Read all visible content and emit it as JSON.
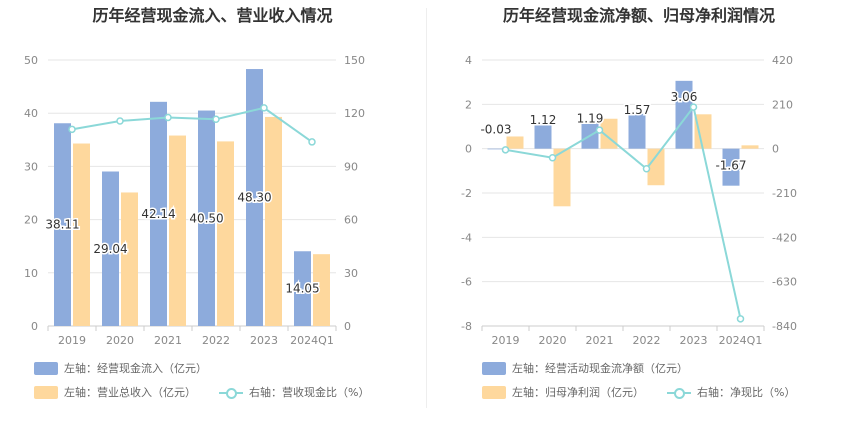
{
  "colors": {
    "bar_primary": "#8dabdc",
    "bar_secondary": "#fed89d",
    "line": "#8bd8d8"
  },
  "chart_data": [
    {
      "type": "bar",
      "title": "历年经营现金流入、营业收入情况",
      "categories": [
        "2019",
        "2020",
        "2021",
        "2022",
        "2023",
        "2024Q1"
      ],
      "series": [
        {
          "name": "左轴：经营现金流入（亿元）",
          "axis": "left",
          "values": [
            38.11,
            29.04,
            42.14,
            40.5,
            48.3,
            14.05
          ],
          "labels": [
            "38.11",
            "29.04",
            "42.14",
            "40.50",
            "48.30",
            "14.05"
          ]
        },
        {
          "name": "左轴：营业总收入（亿元）",
          "axis": "left",
          "values": [
            34.3,
            25.1,
            35.8,
            34.7,
            39.3,
            13.5
          ]
        },
        {
          "name": "右轴：营收现金比（%）",
          "axis": "right",
          "type": "line",
          "values": [
            110.9,
            115.6,
            117.6,
            116.6,
            123.0,
            103.8
          ]
        }
      ],
      "left_axis": {
        "min": 0,
        "max": 50,
        "ticks": [
          "0",
          "10",
          "20",
          "30",
          "40",
          "50"
        ]
      },
      "right_axis": {
        "min": 0,
        "max": 150,
        "ticks": [
          "0",
          "30",
          "60",
          "90",
          "120",
          "150"
        ]
      },
      "grid": true,
      "legend_position": "bottom"
    },
    {
      "type": "bar",
      "title": "历年经营现金流净额、归母净利润情况",
      "categories": [
        "2019",
        "2020",
        "2021",
        "2022",
        "2023",
        "2024Q1"
      ],
      "series": [
        {
          "name": "左轴：经营活动现金流净额（亿元）",
          "axis": "left",
          "values": [
            -0.03,
            1.12,
            1.19,
            1.57,
            3.06,
            -1.67
          ],
          "labels": [
            "-0.03",
            "1.12",
            "1.19",
            "1.57",
            "3.06",
            "-1.67"
          ]
        },
        {
          "name": "左轴：归母净利润（亿元）",
          "axis": "left",
          "values": [
            0.55,
            -2.6,
            1.35,
            -1.65,
            1.55,
            0.15
          ]
        },
        {
          "name": "右轴：净现比（%）",
          "axis": "right",
          "type": "line",
          "values": [
            -5.5,
            -43,
            88,
            -95,
            197,
            -806
          ]
        }
      ],
      "left_axis": {
        "min": -8,
        "max": 4,
        "ticks": [
          "-8",
          "-6",
          "-4",
          "-2",
          "0",
          "2",
          "4"
        ]
      },
      "right_axis": {
        "min": -840,
        "max": 420,
        "ticks": [
          "-840",
          "-630",
          "-420",
          "-210",
          "0",
          "210",
          "420"
        ]
      },
      "grid": true,
      "legend_position": "bottom"
    }
  ]
}
